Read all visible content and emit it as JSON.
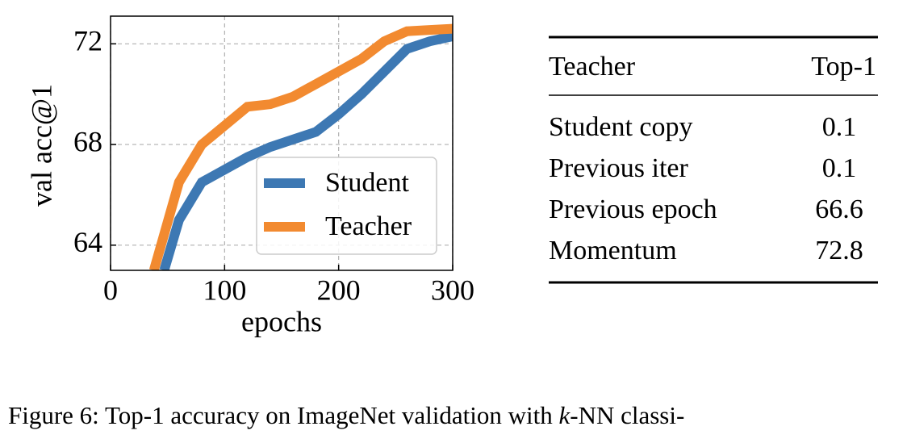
{
  "chart_data": {
    "type": "line",
    "xlabel": "epochs",
    "ylabel": "val acc@1",
    "xlim": [
      0,
      300
    ],
    "xticks": [
      0,
      100,
      200,
      300
    ],
    "ylim": [
      63,
      73.1
    ],
    "yticks": [
      64,
      68,
      72
    ],
    "grid": true,
    "legend": "lower right",
    "series": [
      {
        "name": "Student",
        "color": "#3d78b3",
        "x": [
          47,
          60,
          80,
          120,
          140,
          160,
          180,
          200,
          220,
          240,
          260,
          280,
          300
        ],
        "values": [
          63.0,
          65.0,
          66.5,
          67.5,
          67.9,
          68.2,
          68.5,
          69.2,
          70.0,
          70.9,
          71.8,
          72.1,
          72.3
        ]
      },
      {
        "name": "Teacher",
        "color": "#f28a30",
        "x": [
          38,
          60,
          80,
          120,
          140,
          160,
          180,
          200,
          220,
          240,
          260,
          280,
          300
        ],
        "values": [
          63.0,
          66.5,
          68.0,
          69.5,
          69.6,
          69.9,
          70.4,
          70.9,
          71.4,
          72.1,
          72.5,
          72.55,
          72.6
        ]
      }
    ]
  },
  "table": {
    "header": [
      "Teacher",
      "Top-1"
    ],
    "rows": [
      [
        "Student copy",
        0.1
      ],
      [
        "Previous iter",
        0.1
      ],
      [
        "Previous epoch",
        66.6
      ],
      [
        "Momentum",
        72.8
      ]
    ]
  },
  "caption": {
    "prefix": "Figure 6: Top-1 accuracy on ImageNet validation with",
    "italic": "k",
    "suffix": "-NN classi-"
  }
}
